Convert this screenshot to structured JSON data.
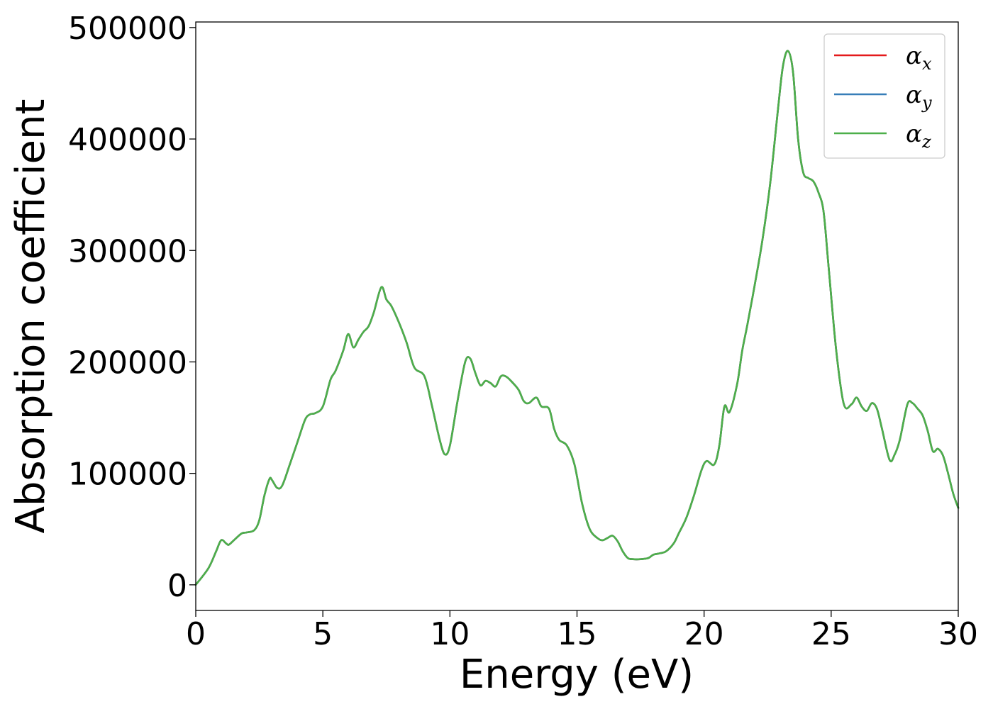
{
  "chart_data": {
    "type": "line",
    "title": "",
    "xlabel": "Energy (eV)",
    "ylabel": "Absorption coefficient",
    "xlim": [
      0,
      30
    ],
    "ylim": [
      -23000,
      505000
    ],
    "x_ticks": [
      0,
      5,
      10,
      15,
      20,
      25,
      30
    ],
    "x_tick_labels": [
      "0",
      "5",
      "10",
      "15",
      "20",
      "25",
      "30"
    ],
    "y_ticks": [
      0,
      100000,
      200000,
      300000,
      400000,
      500000
    ],
    "y_tick_labels": [
      "0",
      "100000",
      "200000",
      "300000",
      "400000",
      "500000"
    ],
    "grid": false,
    "legend_position": "top-right",
    "x": [
      0,
      0.5,
      0.8,
      1.0,
      1.2,
      1.3,
      1.5,
      1.8,
      2.0,
      2.3,
      2.5,
      2.7,
      2.9,
      3.0,
      3.2,
      3.4,
      3.7,
      4.0,
      4.3,
      4.5,
      4.7,
      5.0,
      5.3,
      5.5,
      5.8,
      6.0,
      6.2,
      6.4,
      6.6,
      6.8,
      7.0,
      7.3,
      7.5,
      7.7,
      8.0,
      8.3,
      8.6,
      9.0,
      9.3,
      9.6,
      9.8,
      10.0,
      10.3,
      10.6,
      10.8,
      11.0,
      11.2,
      11.4,
      11.6,
      11.8,
      12.0,
      12.2,
      12.4,
      12.7,
      12.9,
      13.1,
      13.4,
      13.6,
      13.9,
      14.1,
      14.3,
      14.6,
      14.9,
      15.2,
      15.5,
      15.8,
      16.0,
      16.2,
      16.4,
      16.6,
      16.8,
      17.0,
      17.2,
      17.5,
      17.8,
      18.0,
      18.2,
      18.5,
      18.8,
      19.0,
      19.3,
      19.6,
      19.9,
      20.1,
      20.4,
      20.6,
      20.8,
      21.0,
      21.3,
      21.5,
      21.7,
      22.0,
      22.3,
      22.6,
      22.9,
      23.1,
      23.3,
      23.5,
      23.7,
      23.9,
      24.1,
      24.3,
      24.5,
      24.7,
      24.9,
      25.2,
      25.5,
      25.8,
      26.0,
      26.2,
      26.4,
      26.6,
      26.8,
      27.0,
      27.3,
      27.5,
      27.7,
      28.0,
      28.2,
      28.4,
      28.6,
      28.8,
      29.0,
      29.2,
      29.4,
      29.6,
      29.8,
      30.0
    ],
    "y_values": [
      0,
      15000,
      30000,
      40000,
      37000,
      36000,
      40000,
      46000,
      47000,
      49000,
      58000,
      80000,
      95000,
      94000,
      87000,
      89000,
      108000,
      128000,
      148000,
      153000,
      154000,
      160000,
      184000,
      192000,
      210000,
      225000,
      213000,
      220000,
      227000,
      232000,
      244000,
      267000,
      256000,
      250000,
      235000,
      217000,
      195000,
      187000,
      160000,
      130000,
      117000,
      125000,
      165000,
      200000,
      203000,
      190000,
      179000,
      183000,
      181000,
      178000,
      187000,
      187000,
      183000,
      175000,
      165000,
      163000,
      168000,
      160000,
      158000,
      140000,
      130000,
      125000,
      108000,
      73000,
      50000,
      42000,
      40000,
      42000,
      44000,
      39000,
      30000,
      24000,
      23000,
      23000,
      24000,
      27000,
      28000,
      30000,
      37000,
      46000,
      60000,
      80000,
      103000,
      111000,
      108000,
      125000,
      160000,
      155000,
      180000,
      210000,
      233000,
      270000,
      310000,
      360000,
      425000,
      465000,
      479000,
      460000,
      400000,
      370000,
      365000,
      362000,
      352000,
      335000,
      285000,
      210000,
      162000,
      162000,
      168000,
      160000,
      156000,
      163000,
      158000,
      140000,
      112000,
      117000,
      130000,
      162000,
      163000,
      158000,
      152000,
      138000,
      120000,
      122000,
      116000,
      100000,
      82000,
      69000
    ],
    "series": [
      {
        "name": "α_x",
        "label_main": "α",
        "label_sub": "x",
        "color": "#e41a1c"
      },
      {
        "name": "α_y",
        "label_main": "α",
        "label_sub": "y",
        "color": "#377eb8"
      },
      {
        "name": "α_z",
        "label_main": "α",
        "label_sub": "z",
        "color": "#4daf4a"
      }
    ]
  }
}
